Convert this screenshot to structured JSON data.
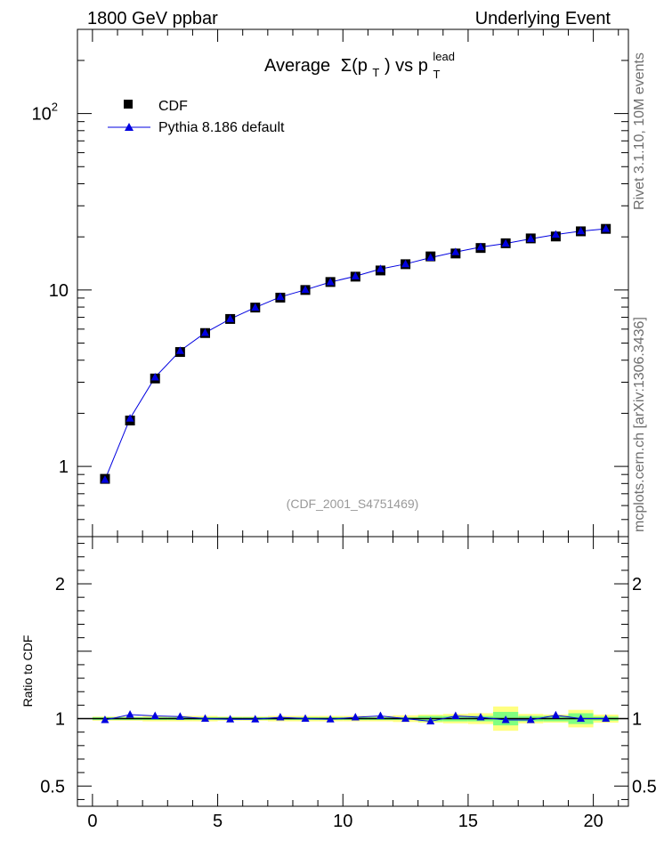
{
  "header": {
    "left": "1800 GeV ppbar",
    "right": "Underlying Event"
  },
  "side_labels": {
    "top": "Rivet 3.1.10, 10M events",
    "bottom": "mcplots.cern.ch [arXiv:1306.3436]"
  },
  "colors": {
    "data": "#000000",
    "mc": "#0000e0",
    "band_inner": "#80ff80",
    "band_outer": "#ffff80"
  },
  "chart_data": [
    {
      "type": "scatter",
      "title_main": "Average",
      "title_sigma": "Σ(p",
      "title_sub_T": "T",
      "title_mid": ") vs p",
      "title_sup": "lead",
      "title_sub_T2": "T",
      "annotation": "(CDF_2001_S4751469)",
      "y_scale": "log",
      "xlim": [
        -0.6,
        21.4
      ],
      "ylim": [
        0.4,
        300
      ],
      "y_ticks": [
        {
          "value": 1,
          "label": "1"
        },
        {
          "value": 10,
          "label": "10"
        },
        {
          "value": 100,
          "label": "10",
          "sup": "2"
        }
      ],
      "legend_position": "top-left",
      "x": [
        0.5,
        1.5,
        2.5,
        3.5,
        4.5,
        5.5,
        6.5,
        7.5,
        8.5,
        9.5,
        10.5,
        11.5,
        12.5,
        13.5,
        14.5,
        15.5,
        16.5,
        17.5,
        18.5,
        19.5,
        20.5
      ],
      "series": [
        {
          "name": "CDF",
          "marker": "square",
          "values": [
            0.85,
            1.82,
            3.15,
            4.45,
            5.7,
            6.85,
            7.95,
            9.05,
            10.0,
            11.1,
            11.9,
            12.9,
            14.0,
            15.5,
            16.1,
            17.3,
            18.4,
            19.6,
            20.1,
            21.5,
            22.2
          ]
        },
        {
          "name": "Pythia 8.186 default",
          "marker": "triangle",
          "values": [
            0.84,
            1.87,
            3.2,
            4.52,
            5.72,
            6.85,
            7.95,
            9.13,
            10.02,
            11.08,
            11.97,
            13.15,
            14.03,
            15.25,
            16.4,
            17.5,
            18.35,
            19.5,
            20.6,
            21.55,
            22.2
          ]
        }
      ]
    },
    {
      "type": "line",
      "ylabel": "Ratio to CDF",
      "y_scale": "linear",
      "xlim": [
        -0.6,
        21.4
      ],
      "ylim": [
        0.35,
        2.35
      ],
      "x_ticks": [
        0,
        5,
        10,
        15,
        20
      ],
      "y_ticks": [
        {
          "value": 0.5,
          "label": "0.5"
        },
        {
          "value": 1,
          "label": "1"
        },
        {
          "value": 2,
          "label": "2"
        }
      ],
      "x": [
        0.5,
        1.5,
        2.5,
        3.5,
        4.5,
        5.5,
        6.5,
        7.5,
        8.5,
        9.5,
        10.5,
        11.5,
        12.5,
        13.5,
        14.5,
        15.5,
        16.5,
        17.5,
        18.5,
        19.5,
        20.5
      ],
      "ratio": [
        0.99,
        1.03,
        1.02,
        1.015,
        1.0,
        0.995,
        0.995,
        1.01,
        1.0,
        0.995,
        1.01,
        1.02,
        1.0,
        0.98,
        1.02,
        1.01,
        0.99,
        0.99,
        1.025,
        1.0,
        1.0
      ],
      "band_inner": [
        0.01,
        0.01,
        0.01,
        0.01,
        0.01,
        0.01,
        0.01,
        0.01,
        0.01,
        0.01,
        0.01,
        0.01,
        0.01,
        0.02,
        0.02,
        0.02,
        0.05,
        0.02,
        0.02,
        0.04,
        0.015
      ],
      "band_outer": [
        0.015,
        0.015,
        0.02,
        0.02,
        0.02,
        0.015,
        0.015,
        0.02,
        0.02,
        0.02,
        0.02,
        0.02,
        0.025,
        0.03,
        0.035,
        0.04,
        0.09,
        0.035,
        0.03,
        0.065,
        0.03
      ]
    }
  ]
}
